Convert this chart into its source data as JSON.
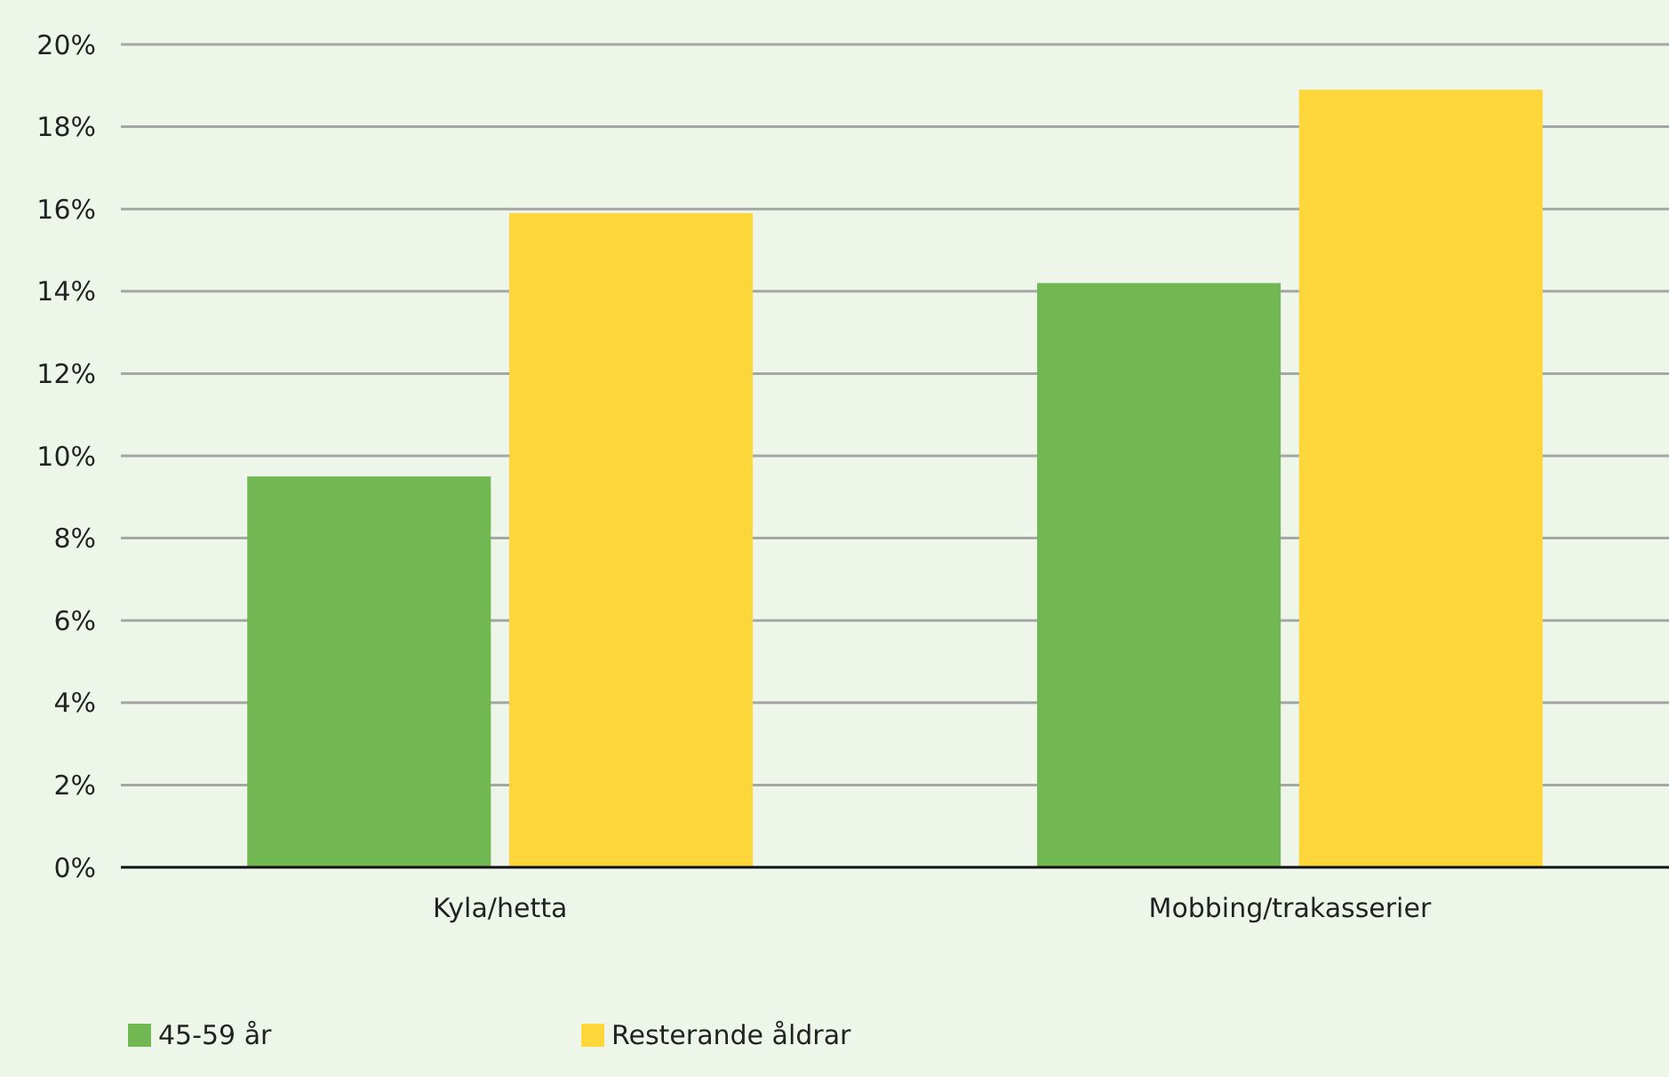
{
  "chart_data": {
    "type": "bar",
    "categories": [
      "Kyla/hetta",
      "Mobbing/trakasserier"
    ],
    "series": [
      {
        "name": "45-59 år",
        "color": "#72b852",
        "values": [
          9.5,
          14.2
        ]
      },
      {
        "name": "Resterande åldrar",
        "color": "#fdd73a",
        "values": [
          15.9,
          18.9
        ]
      }
    ],
    "ylim": [
      0,
      20
    ],
    "yticks": [
      {
        "value": 0,
        "label": "0%"
      },
      {
        "value": 2,
        "label": "2%"
      },
      {
        "value": 4,
        "label": "4%"
      },
      {
        "value": 6,
        "label": "6%"
      },
      {
        "value": 8,
        "label": "8%"
      },
      {
        "value": 10,
        "label": "10%"
      },
      {
        "value": 12,
        "label": "12%"
      },
      {
        "value": 14,
        "label": "14%"
      },
      {
        "value": 16,
        "label": "16%"
      },
      {
        "value": 18,
        "label": "18%"
      },
      {
        "value": 20,
        "label": "20%"
      }
    ],
    "grid": "y",
    "legend": "bottom"
  }
}
